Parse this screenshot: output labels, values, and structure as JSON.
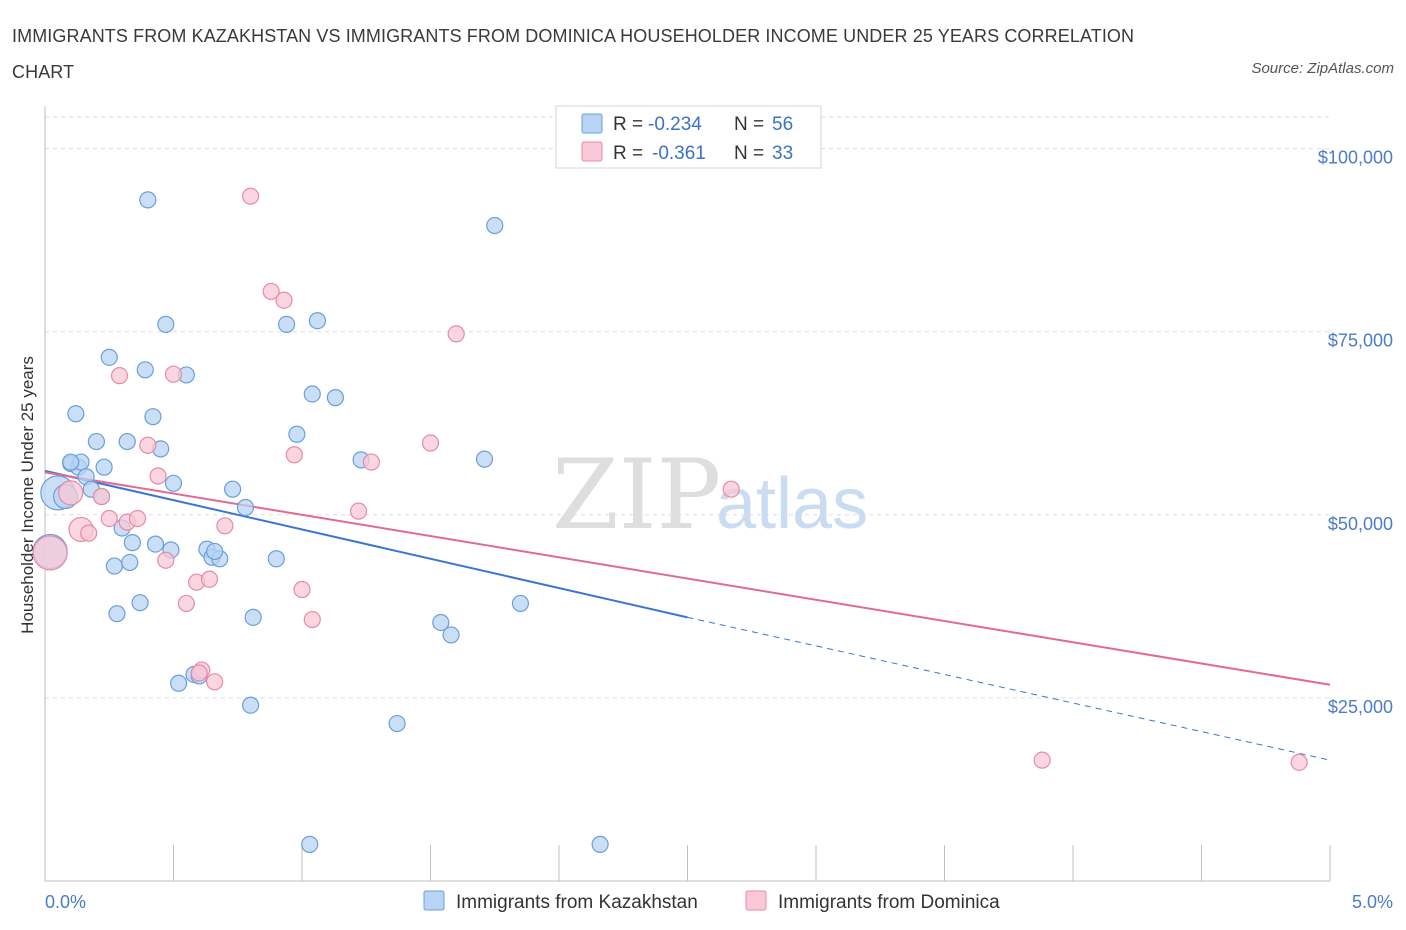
{
  "title": "IMMIGRANTS FROM KAZAKHSTAN VS IMMIGRANTS FROM DOMINICA HOUSEHOLDER INCOME UNDER 25 YEARS CORRELATION CHART",
  "source": "Source: ZipAtlas.com",
  "watermark": {
    "zip": "ZIP",
    "atlas": "atlas"
  },
  "colors": {
    "blue_fill": "#b8d3f3",
    "blue_stroke": "#6a9fdc",
    "blue_line": "#3a76d0",
    "pink_fill": "#f8c8d6",
    "pink_stroke": "#e88aa6",
    "pink_line": "#e06a94",
    "grid": "#dddddd",
    "axis_text": "#4a7cc9"
  },
  "legend": {
    "r_label": "R =",
    "n_label": "N =",
    "rows": [
      {
        "r": "-0.234",
        "n": "56"
      },
      {
        "r": "-0.361",
        "n": "33"
      }
    ]
  },
  "chart_data": {
    "type": "scatter",
    "xlabel": "",
    "ylabel": "Householder Income Under 25 years",
    "xlim": [
      0,
      5
    ],
    "ylim": [
      0,
      105000
    ],
    "x_tick_labels": [
      "0.0%",
      "5.0%"
    ],
    "y_ticks": [
      25000,
      50000,
      75000,
      100000
    ],
    "y_tick_labels": [
      "$25,000",
      "$50,000",
      "$75,000",
      "$100,000"
    ],
    "grid": true,
    "series": [
      {
        "name": "Immigrants from Kazakhstan",
        "trend": {
          "x0": 0.0,
          "y0": 56000,
          "x1": 2.5,
          "y1": 36000,
          "dash_to_x": 5.0,
          "dash_to_y": 16500
        },
        "points": [
          [
            0.02,
            45000,
            "L"
          ],
          [
            0.05,
            53000,
            "L"
          ],
          [
            0.08,
            52500,
            "M"
          ],
          [
            0.1,
            57000
          ],
          [
            0.12,
            63800
          ],
          [
            0.13,
            56500
          ],
          [
            0.14,
            57200
          ],
          [
            0.16,
            55200
          ],
          [
            0.18,
            53500
          ],
          [
            0.2,
            60000
          ],
          [
            0.22,
            52500
          ],
          [
            0.23,
            56500
          ],
          [
            0.25,
            71500
          ],
          [
            0.27,
            43000
          ],
          [
            0.28,
            36500
          ],
          [
            0.3,
            48200
          ],
          [
            0.32,
            60000
          ],
          [
            0.33,
            43500
          ],
          [
            0.34,
            46200
          ],
          [
            0.37,
            38000
          ],
          [
            0.39,
            69800
          ],
          [
            0.4,
            93000
          ],
          [
            0.42,
            63400
          ],
          [
            0.43,
            46000
          ],
          [
            0.45,
            59000
          ],
          [
            0.47,
            76000
          ],
          [
            0.49,
            45200
          ],
          [
            0.5,
            54300
          ],
          [
            0.52,
            27000
          ],
          [
            0.55,
            69100
          ],
          [
            0.58,
            28200
          ],
          [
            0.6,
            28000
          ],
          [
            0.63,
            45300
          ],
          [
            0.65,
            44200
          ],
          [
            0.68,
            44000
          ],
          [
            0.73,
            53500
          ],
          [
            0.78,
            51000
          ],
          [
            0.8,
            24000
          ],
          [
            0.81,
            36000
          ],
          [
            0.9,
            44000
          ],
          [
            0.94,
            76000
          ],
          [
            0.98,
            61000
          ],
          [
            1.04,
            66500
          ],
          [
            1.06,
            76500
          ],
          [
            1.13,
            66000
          ],
          [
            1.23,
            57500
          ],
          [
            1.37,
            21500
          ],
          [
            1.54,
            35300
          ],
          [
            1.58,
            33600
          ],
          [
            1.71,
            57600
          ],
          [
            1.75,
            89500
          ],
          [
            1.85,
            37900
          ],
          [
            1.03,
            5000
          ],
          [
            2.16,
            5000
          ],
          [
            0.66,
            45000
          ],
          [
            0.1,
            57200
          ]
        ]
      },
      {
        "name": "Immigrants from Dominica",
        "trend": {
          "x0": 0.0,
          "y0": 55800,
          "x1": 5.0,
          "y1": 26800
        },
        "points": [
          [
            0.02,
            44800,
            "L"
          ],
          [
            0.1,
            53000,
            "M"
          ],
          [
            0.14,
            48000,
            "M"
          ],
          [
            0.17,
            47500
          ],
          [
            0.22,
            52500
          ],
          [
            0.25,
            49500
          ],
          [
            0.29,
            69000
          ],
          [
            0.32,
            49000
          ],
          [
            0.36,
            49500
          ],
          [
            0.4,
            59500
          ],
          [
            0.44,
            55300
          ],
          [
            0.47,
            43800
          ],
          [
            0.5,
            69200
          ],
          [
            0.55,
            37900
          ],
          [
            0.59,
            40800
          ],
          [
            0.61,
            28800
          ],
          [
            0.64,
            41200
          ],
          [
            0.66,
            27200
          ],
          [
            0.7,
            48500
          ],
          [
            0.8,
            93500
          ],
          [
            0.88,
            80500
          ],
          [
            0.93,
            79300
          ],
          [
            0.97,
            58200
          ],
          [
            1.0,
            39800
          ],
          [
            1.04,
            35700
          ],
          [
            1.22,
            50500
          ],
          [
            1.27,
            57200
          ],
          [
            1.5,
            59800
          ],
          [
            1.6,
            74700
          ],
          [
            2.67,
            53500
          ],
          [
            3.88,
            16500
          ],
          [
            4.88,
            16200
          ],
          [
            0.6,
            28400
          ]
        ]
      }
    ]
  }
}
